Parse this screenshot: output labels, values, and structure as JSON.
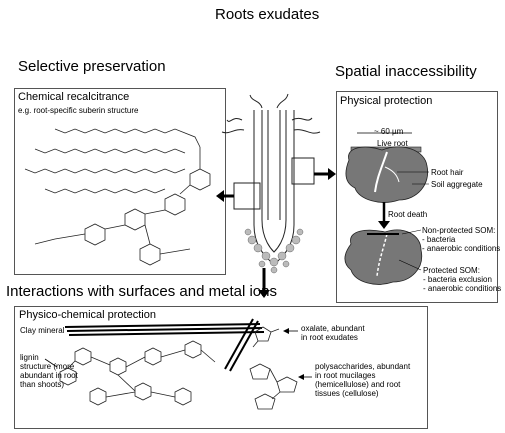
{
  "title": "Roots exudates",
  "sections": {
    "selective": "Selective preservation",
    "spatial": "Spatial inaccessibility",
    "interactions": "Interactions with surfaces and metal ions"
  },
  "chemical_box": {
    "title": "Chemical recalcitrance",
    "subtitle": "e.g. root-specific suberin structure"
  },
  "physical_box": {
    "title": "Physical protection",
    "scale": "~ 60 µm",
    "live_root": "Live root",
    "root_hair": "Root hair",
    "soil_aggregate": "Soil aggregate",
    "root_death": "Root death",
    "non_protected": "Non-protected SOM:",
    "non_protected_1": "- bacteria",
    "non_protected_2": "- anaerobic conditions",
    "protected": "Protected SOM:",
    "protected_1": "- bacteria exclusion",
    "protected_2": "- anaerobic conditions"
  },
  "physico_box": {
    "title": "Physico-chemical protection",
    "clay_mineral": "Clay mineral",
    "lignin_1": "lignin",
    "lignin_2": "structure (more",
    "lignin_3": "abundant in root",
    "lignin_4": "than shoots)",
    "oxalate_1": "oxalate, abundant",
    "oxalate_2": "in root exudates",
    "poly_1": "polysaccharides, abundant",
    "poly_2": "in root mucilages",
    "poly_3": "(hemicellulose) and root",
    "poly_4": "tissues (cellulose)"
  }
}
